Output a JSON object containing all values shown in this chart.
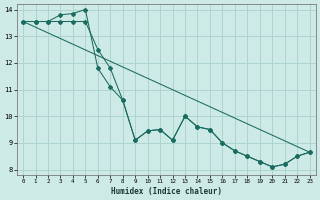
{
  "xlabel": "Humidex (Indice chaleur)",
  "background_color": "#ceeae6",
  "grid_color": "#aed4d0",
  "line_color": "#1a6b60",
  "xlim": [
    -0.5,
    23.5
  ],
  "ylim": [
    7.8,
    14.2
  ],
  "yticks": [
    8,
    9,
    10,
    11,
    12,
    13,
    14
  ],
  "xticks": [
    0,
    1,
    2,
    3,
    4,
    5,
    6,
    7,
    8,
    9,
    10,
    11,
    12,
    13,
    14,
    15,
    16,
    17,
    18,
    19,
    20,
    21,
    22,
    23
  ],
  "line1_x": [
    0,
    1,
    2,
    3,
    4,
    5,
    6,
    7,
    8,
    9,
    10,
    11,
    12,
    13,
    14,
    15,
    16,
    17,
    18,
    19,
    20,
    21,
    22,
    23
  ],
  "line1_y": [
    13.55,
    13.55,
    13.55,
    13.8,
    13.85,
    14.0,
    11.8,
    11.1,
    10.6,
    9.1,
    9.45,
    9.5,
    9.1,
    10.0,
    9.6,
    9.5,
    9.0,
    8.7,
    8.5,
    8.3,
    8.1,
    8.2,
    8.5,
    8.65
  ],
  "line2_x": [
    0,
    1,
    2,
    3,
    4,
    5,
    6,
    7,
    8,
    9,
    10,
    11,
    12,
    13,
    14,
    15,
    16,
    17,
    18,
    19,
    20,
    21,
    22,
    23
  ],
  "line2_y": [
    13.55,
    13.55,
    13.55,
    13.55,
    13.55,
    13.55,
    12.5,
    11.8,
    10.6,
    9.1,
    9.45,
    9.5,
    9.1,
    10.0,
    9.6,
    9.5,
    9.0,
    8.7,
    8.5,
    8.3,
    8.1,
    8.2,
    8.5,
    8.65
  ],
  "line3_x": [
    0,
    23
  ],
  "line3_y": [
    13.55,
    8.65
  ]
}
